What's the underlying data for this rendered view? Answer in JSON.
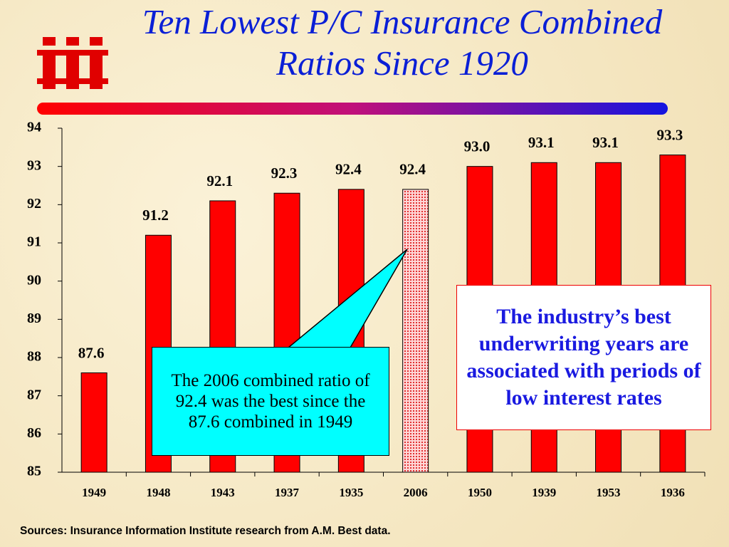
{
  "chart_data": {
    "type": "bar",
    "title": "Ten Lowest P/C Insurance Combined Ratios Since 1920",
    "categories": [
      "1949",
      "1948",
      "1943",
      "1937",
      "1935",
      "2006",
      "1950",
      "1939",
      "1953",
      "1936"
    ],
    "values": [
      87.6,
      91.2,
      92.1,
      92.3,
      92.4,
      92.4,
      93.0,
      93.1,
      93.1,
      93.3
    ],
    "value_labels": [
      "87.6",
      "91.2",
      "92.1",
      "92.3",
      "92.4",
      "92.4",
      "93.0",
      "93.1",
      "93.1",
      "93.3"
    ],
    "colors": [
      "#ff0000",
      "#ff0000",
      "#ff0000",
      "#ff0000",
      "#ff0000",
      "#f2a0a0",
      "#ff0000",
      "#ff0000",
      "#ff0000",
      "#ff0000"
    ],
    "ylim": [
      85,
      94
    ],
    "yticks": [
      85,
      86,
      87,
      88,
      89,
      90,
      91,
      92,
      93,
      94
    ],
    "grid": false,
    "annotations": [
      "The 2006 combined ratio of 92.4 was the best since the 87.6 combined in 1949",
      "The industry’s best underwriting years are associated with periods of low interest rates"
    ],
    "source": "Sources: Insurance Information Institute research from A.M. Best data."
  }
}
